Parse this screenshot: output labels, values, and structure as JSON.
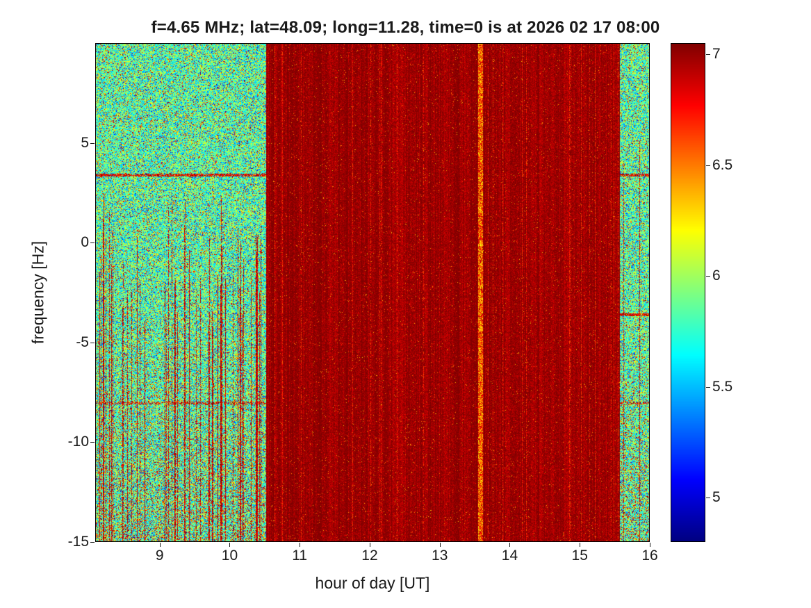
{
  "chart_data": {
    "type": "heatmap",
    "title": "f=4.65 MHz;  lat=48.09; long=11.28, time=0 is at 2026 02 17 08:00",
    "xlabel": "hour of day [UT]",
    "ylabel": "frequency [Hz]",
    "xlim": [
      8.08,
      16
    ],
    "ylim": [
      -15,
      10
    ],
    "xticks": [
      9,
      10,
      11,
      12,
      13,
      14,
      15,
      16
    ],
    "yticks": [
      5,
      0,
      -5,
      -10,
      -15
    ],
    "grid": false,
    "legend": false,
    "colorbar": {
      "colormap": "jet",
      "vmin": 4.8,
      "vmax": 7.05,
      "ticks": [
        7,
        6.5,
        6,
        5.5,
        5
      ],
      "position": "right"
    },
    "heatmap": {
      "seed": 1337,
      "description": "Noisy spectrogram: teal/green speckle noise (values ~5.4-6.3) from 8.1-10.5 UT with many narrow dark-red vertical streaks mostly below 2 Hz; saturated dark-red band (values ~6.8-7.1) from 10.5-15.6 UT with a narrow mixed yellow/orange vertical stripe near 13.6 UT; teal noise returns 15.6-16 UT with red horizontal lines near +3.4, -3.6 and -8 Hz.",
      "regions": {
        "left_noise": {
          "t_end": 10.52,
          "base_min": 5.4,
          "base_max": 6.25,
          "warm_speckle_prob": 0.1,
          "cool_speckle_prob": 0.05,
          "streak_col_prob": 0.22,
          "streak_top_max": 2.5,
          "streak_top_range": 7,
          "streak_vmin": 6.7,
          "streak_vrange": 0.4
        },
        "right_noise": {
          "t_start": 15.57,
          "base_min": 5.4,
          "base_max": 6.25,
          "warm_speckle_prob": 0.1,
          "cool_speckle_prob": 0.05,
          "streak_col_prob": 0.08,
          "streak_top_max": 8,
          "streak_top_range": 5,
          "streak_vmin": 6.7,
          "streak_vrange": 0.4
        },
        "main_red": {
          "t_start": 10.52,
          "t_end": 15.57,
          "base": 7.0,
          "noise": 0.2,
          "col_offset": 0.14,
          "speckle_prob": 0.02,
          "bright_col_prob": 0.04
        },
        "light_stripe": {
          "t_center": 13.58,
          "half_width": 0.035,
          "vmin": 6.15,
          "vmax": 7.0
        }
      },
      "hlines": [
        {
          "f": 3.4,
          "half_width": 0.07,
          "zones": "AC",
          "prob": 0.8
        },
        {
          "f": -3.6,
          "half_width": 0.07,
          "zones": "C",
          "prob": 0.8
        },
        {
          "f": -8.05,
          "half_width": 0.07,
          "zones": "AC",
          "prob": 0.55
        }
      ]
    }
  }
}
